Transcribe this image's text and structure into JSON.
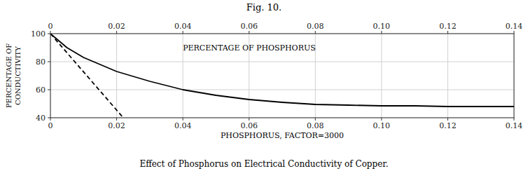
{
  "chart_data": {
    "type": "line",
    "title": "Fig. 10.",
    "caption": "Effect of Phosphorus on Electrical Conductivity of Copper.",
    "x_label": "PHOSPHORUS,  FACTOR=3000",
    "y_label": [
      "PERCENTAGE OF",
      "CONDUCTIVITY"
    ],
    "annotations": [
      {
        "text": "PERCENTAGE OF PHOSPHORUS",
        "x": 0.04,
        "y": 93
      }
    ],
    "xlim": [
      0,
      0.14
    ],
    "ylim": [
      40,
      100
    ],
    "xticks": [
      0,
      0.02,
      0.04,
      0.06,
      0.08,
      {
        "value": 0.1,
        "label": "0.10"
      },
      0.12,
      0.14
    ],
    "yticks": [
      40,
      60,
      80,
      100
    ],
    "grid": true,
    "series": [
      {
        "x": [
          0.0,
          0.005,
          0.01,
          0.02,
          0.03,
          0.04,
          0.05,
          0.06,
          0.07,
          0.08,
          0.09,
          0.1,
          0.11,
          0.12,
          0.13,
          0.14
        ],
        "values": [
          100,
          90,
          83,
          73,
          66,
          60,
          56,
          53,
          51,
          49.5,
          49,
          48.5,
          48.5,
          48,
          48,
          48
        ],
        "color": "#000000",
        "line_style": "solid"
      },
      {
        "x": [
          0.0,
          0.022
        ],
        "values": [
          100,
          40
        ],
        "color": "#000000",
        "line_style": "dashed"
      }
    ]
  }
}
